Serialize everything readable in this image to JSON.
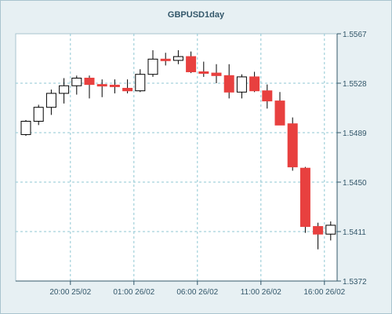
{
  "chart_data": {
    "type": "candlestick",
    "title": "GBPUSD1day",
    "symbol": "GBPUSD",
    "timeframe": "1day",
    "xlabel": "",
    "ylabel": "",
    "ylim": [
      1.5372,
      1.5567
    ],
    "y_ticks": [
      "1.5567",
      "1.5528",
      "1.5489",
      "1.5450",
      "1.5411",
      "1.5372"
    ],
    "x_ticks": [
      {
        "index": 4,
        "label": "20:00 25/02"
      },
      {
        "index": 9,
        "label": "01:00 26/02"
      },
      {
        "index": 14,
        "label": "06:00 26/02"
      },
      {
        "index": 19,
        "label": "11:00 26/02"
      },
      {
        "index": 24,
        "label": "16:00 26/02"
      }
    ],
    "grid": true,
    "colors": {
      "bull_fill": "#ffffff",
      "bear_fill": "#e8403f",
      "outline": "#000000",
      "grid": "#8fc7d3",
      "axis": "#33576a",
      "plot_bg": "#ffffff",
      "frame_bg": "#e7f0f3"
    },
    "candles": [
      {
        "o": 1.54875,
        "h": 1.5499,
        "l": 1.54865,
        "c": 1.5498
      },
      {
        "o": 1.5498,
        "h": 1.5511,
        "l": 1.5495,
        "c": 1.5509
      },
      {
        "o": 1.5509,
        "h": 1.5523,
        "l": 1.5503,
        "c": 1.552
      },
      {
        "o": 1.552,
        "h": 1.5532,
        "l": 1.5512,
        "c": 1.5526
      },
      {
        "o": 1.5526,
        "h": 1.5534,
        "l": 1.5519,
        "c": 1.5532
      },
      {
        "o": 1.5532,
        "h": 1.5534,
        "l": 1.5516,
        "c": 1.5527
      },
      {
        "o": 1.5527,
        "h": 1.5531,
        "l": 1.5517,
        "c": 1.55265
      },
      {
        "o": 1.55265,
        "h": 1.5531,
        "l": 1.552,
        "c": 1.5526
      },
      {
        "o": 1.5524,
        "h": 1.5531,
        "l": 1.552,
        "c": 1.5522
      },
      {
        "o": 1.5522,
        "h": 1.5539,
        "l": 1.5521,
        "c": 1.5535
      },
      {
        "o": 1.5535,
        "h": 1.5554,
        "l": 1.5533,
        "c": 1.5547
      },
      {
        "o": 1.5547,
        "h": 1.5552,
        "l": 1.5542,
        "c": 1.5546
      },
      {
        "o": 1.5546,
        "h": 1.5554,
        "l": 1.5543,
        "c": 1.5549
      },
      {
        "o": 1.5549,
        "h": 1.5553,
        "l": 1.5536,
        "c": 1.5537
      },
      {
        "o": 1.5537,
        "h": 1.5545,
        "l": 1.5533,
        "c": 1.55365
      },
      {
        "o": 1.5536,
        "h": 1.5543,
        "l": 1.5528,
        "c": 1.5534
      },
      {
        "o": 1.5534,
        "h": 1.5543,
        "l": 1.5516,
        "c": 1.5521
      },
      {
        "o": 1.5521,
        "h": 1.5535,
        "l": 1.5516,
        "c": 1.5533
      },
      {
        "o": 1.5533,
        "h": 1.5537,
        "l": 1.5521,
        "c": 1.5522
      },
      {
        "o": 1.5522,
        "h": 1.5527,
        "l": 1.5508,
        "c": 1.5514
      },
      {
        "o": 1.5514,
        "h": 1.5521,
        "l": 1.5495,
        "c": 1.5495
      },
      {
        "o": 1.5496,
        "h": 1.5501,
        "l": 1.5459,
        "c": 1.5462
      },
      {
        "o": 1.5461,
        "h": 1.5462,
        "l": 1.541,
        "c": 1.5415
      },
      {
        "o": 1.5415,
        "h": 1.5418,
        "l": 1.5397,
        "c": 1.5409
      },
      {
        "o": 1.5409,
        "h": 1.5419,
        "l": 1.5404,
        "c": 1.5416
      }
    ]
  }
}
